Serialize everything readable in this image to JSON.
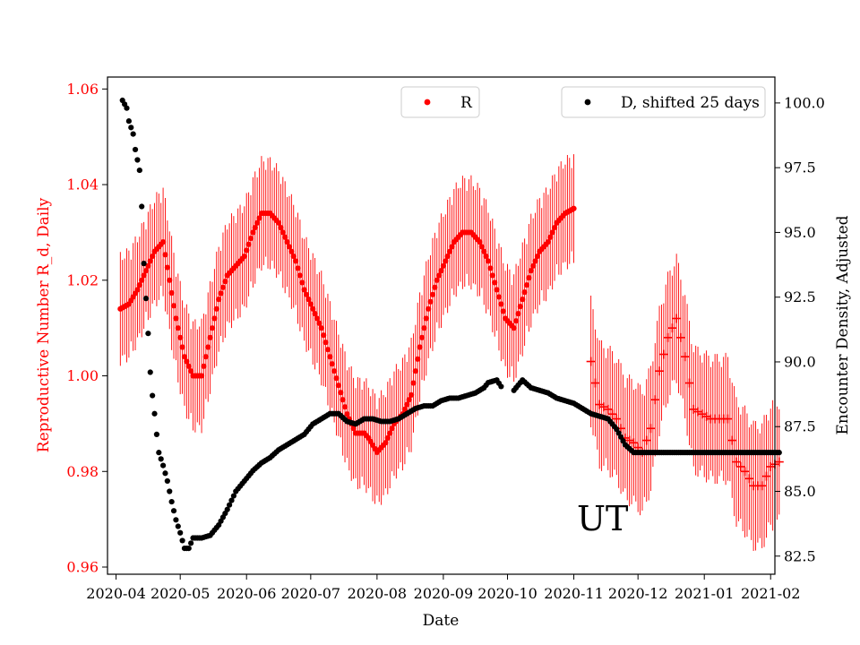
{
  "chart_data": {
    "type": "scatter",
    "xlabel": "Date",
    "ylabel_left": "Reproductive Number R_d, Daily",
    "ylabel_right": "Encounter Density, Adjusted",
    "xlim_days": [
      -4,
      308
    ],
    "x_ticks": [
      {
        "day": 0,
        "label": "2020-04"
      },
      {
        "day": 30,
        "label": "2020-05"
      },
      {
        "day": 61,
        "label": "2020-06"
      },
      {
        "day": 91,
        "label": "2020-07"
      },
      {
        "day": 122,
        "label": "2020-08"
      },
      {
        "day": 153,
        "label": "2020-09"
      },
      {
        "day": 183,
        "label": "2020-10"
      },
      {
        "day": 214,
        "label": "2020-11"
      },
      {
        "day": 244,
        "label": "2020-12"
      },
      {
        "day": 275,
        "label": "2021-01"
      },
      {
        "day": 306,
        "label": "2021-02"
      }
    ],
    "ylim_left": [
      0.9585,
      1.0625
    ],
    "yticks_left": [
      {
        "value": 0.96,
        "label": "0.96"
      },
      {
        "value": 0.98,
        "label": "0.98"
      },
      {
        "value": 1.0,
        "label": "1.00"
      },
      {
        "value": 1.02,
        "label": "1.02"
      },
      {
        "value": 1.04,
        "label": "1.04"
      },
      {
        "value": 1.06,
        "label": "1.06"
      }
    ],
    "ylim_right": [
      81.8,
      101.0
    ],
    "yticks_right": [
      {
        "value": 82.5,
        "label": "82.5"
      },
      {
        "value": 85.0,
        "label": "85.0"
      },
      {
        "value": 87.5,
        "label": "87.5"
      },
      {
        "value": 90.0,
        "label": "90.0"
      },
      {
        "value": 92.5,
        "label": "92.5"
      },
      {
        "value": 95.0,
        "label": "95.0"
      },
      {
        "value": 97.5,
        "label": "97.5"
      },
      {
        "value": 100.0,
        "label": "100.0"
      }
    ],
    "annotation": "UT",
    "colors": {
      "R": "#ff0000",
      "D": "#000000",
      "axis_left": "#ff0000",
      "axis_right": "#000000"
    },
    "series": [
      {
        "name": "R",
        "legend_label": "R",
        "axis": "left",
        "marker": "dot",
        "error_band": 0.01,
        "points": [
          [
            2,
            1.014
          ],
          [
            6,
            1.015
          ],
          [
            10,
            1.018
          ],
          [
            14,
            1.022
          ],
          [
            18,
            1.026
          ],
          [
            22,
            1.028
          ],
          [
            25,
            1.02
          ],
          [
            28,
            1.012
          ],
          [
            32,
            1.004
          ],
          [
            36,
            1.0
          ],
          [
            40,
            1.0
          ],
          [
            44,
            1.008
          ],
          [
            48,
            1.016
          ],
          [
            52,
            1.021
          ],
          [
            56,
            1.023
          ],
          [
            60,
            1.025
          ],
          [
            64,
            1.03
          ],
          [
            68,
            1.034
          ],
          [
            72,
            1.034
          ],
          [
            76,
            1.032
          ],
          [
            80,
            1.028
          ],
          [
            84,
            1.024
          ],
          [
            88,
            1.018
          ],
          [
            92,
            1.014
          ],
          [
            96,
            1.01
          ],
          [
            100,
            1.004
          ],
          [
            104,
            0.998
          ],
          [
            108,
            0.992
          ],
          [
            112,
            0.988
          ],
          [
            116,
            0.988
          ],
          [
            118,
            0.987
          ],
          [
            122,
            0.984
          ],
          [
            126,
            0.986
          ],
          [
            130,
            0.99
          ],
          [
            134,
            0.992
          ],
          [
            138,
            0.996
          ],
          [
            142,
            1.006
          ],
          [
            146,
            1.014
          ],
          [
            150,
            1.02
          ],
          [
            154,
            1.024
          ],
          [
            158,
            1.028
          ],
          [
            162,
            1.03
          ],
          [
            166,
            1.03
          ],
          [
            170,
            1.028
          ],
          [
            174,
            1.024
          ],
          [
            178,
            1.018
          ],
          [
            182,
            1.012
          ],
          [
            186,
            1.01
          ],
          [
            190,
            1.016
          ],
          [
            194,
            1.022
          ],
          [
            198,
            1.026
          ],
          [
            202,
            1.028
          ],
          [
            206,
            1.032
          ],
          [
            210,
            1.034
          ],
          [
            214,
            1.035
          ]
        ]
      },
      {
        "name": "R-tail",
        "legend_label": "",
        "axis": "left",
        "marker": "plus",
        "error_band": 0.012,
        "points": [
          [
            222,
            1.003
          ],
          [
            226,
            0.994
          ],
          [
            230,
            0.993
          ],
          [
            234,
            0.991
          ],
          [
            238,
            0.987
          ],
          [
            242,
            0.986
          ],
          [
            246,
            0.984
          ],
          [
            250,
            0.989
          ],
          [
            254,
            1.001
          ],
          [
            258,
            1.008
          ],
          [
            262,
            1.012
          ],
          [
            266,
            1.004
          ],
          [
            270,
            0.993
          ],
          [
            274,
            0.992
          ],
          [
            278,
            0.991
          ],
          [
            282,
            0.991
          ],
          [
            286,
            0.991
          ],
          [
            290,
            0.982
          ],
          [
            294,
            0.98
          ],
          [
            298,
            0.977
          ],
          [
            302,
            0.977
          ],
          [
            306,
            0.981
          ],
          [
            310,
            0.982
          ]
        ]
      },
      {
        "name": "D",
        "legend_label": "D, shifted 25 days",
        "axis": "right",
        "marker": "dot",
        "points": [
          [
            3,
            100.1
          ],
          [
            5,
            99.8
          ],
          [
            6,
            99.3
          ],
          [
            8,
            98.8
          ],
          [
            9,
            98.2
          ],
          [
            11,
            97.4
          ],
          [
            12,
            96.0
          ],
          [
            13,
            93.8
          ],
          [
            15,
            91.1
          ],
          [
            16,
            89.6
          ],
          [
            17,
            88.7
          ],
          [
            18,
            88.0
          ],
          [
            19,
            87.2
          ],
          [
            20,
            86.5
          ],
          [
            22,
            86.0
          ],
          [
            24,
            85.4
          ],
          [
            26,
            84.6
          ],
          [
            28,
            83.9
          ],
          [
            30,
            83.4
          ],
          [
            32,
            82.8
          ],
          [
            34,
            82.8
          ],
          [
            36,
            83.2
          ],
          [
            40,
            83.2
          ],
          [
            44,
            83.3
          ],
          [
            48,
            83.7
          ],
          [
            52,
            84.3
          ],
          [
            56,
            85.0
          ],
          [
            60,
            85.4
          ],
          [
            64,
            85.8
          ],
          [
            68,
            86.1
          ],
          [
            72,
            86.3
          ],
          [
            76,
            86.6
          ],
          [
            80,
            86.8
          ],
          [
            84,
            87.0
          ],
          [
            88,
            87.2
          ],
          [
            92,
            87.6
          ],
          [
            96,
            87.8
          ],
          [
            100,
            88.0
          ],
          [
            104,
            88.0
          ],
          [
            108,
            87.7
          ],
          [
            112,
            87.6
          ],
          [
            116,
            87.8
          ],
          [
            120,
            87.8
          ],
          [
            124,
            87.7
          ],
          [
            128,
            87.7
          ],
          [
            132,
            87.8
          ],
          [
            136,
            88.0
          ],
          [
            140,
            88.2
          ],
          [
            144,
            88.3
          ],
          [
            148,
            88.3
          ],
          [
            152,
            88.5
          ],
          [
            156,
            88.6
          ],
          [
            160,
            88.6
          ],
          [
            164,
            88.7
          ],
          [
            168,
            88.8
          ],
          [
            172,
            89.0
          ],
          [
            174,
            89.2
          ],
          [
            178,
            89.3
          ],
          [
            182,
            88.8
          ],
          [
            186,
            88.9
          ],
          [
            190,
            89.3
          ],
          [
            194,
            89.0
          ],
          [
            198,
            88.9
          ],
          [
            202,
            88.8
          ],
          [
            206,
            88.6
          ],
          [
            210,
            88.5
          ],
          [
            214,
            88.4
          ],
          [
            218,
            88.2
          ],
          [
            222,
            88.0
          ],
          [
            226,
            87.9
          ],
          [
            230,
            87.8
          ],
          [
            234,
            87.4
          ],
          [
            238,
            86.8
          ],
          [
            242,
            86.5
          ],
          [
            246,
            86.5
          ],
          [
            250,
            86.5
          ],
          [
            254,
            86.5
          ],
          [
            258,
            86.5
          ],
          [
            262,
            86.5
          ],
          [
            266,
            86.5
          ],
          [
            270,
            86.5
          ],
          [
            274,
            86.5
          ],
          [
            278,
            86.5
          ],
          [
            282,
            86.5
          ],
          [
            286,
            86.5
          ],
          [
            290,
            86.5
          ],
          [
            294,
            86.5
          ],
          [
            298,
            86.5
          ],
          [
            302,
            86.5
          ],
          [
            306,
            86.5
          ],
          [
            310,
            86.5
          ]
        ]
      }
    ]
  }
}
